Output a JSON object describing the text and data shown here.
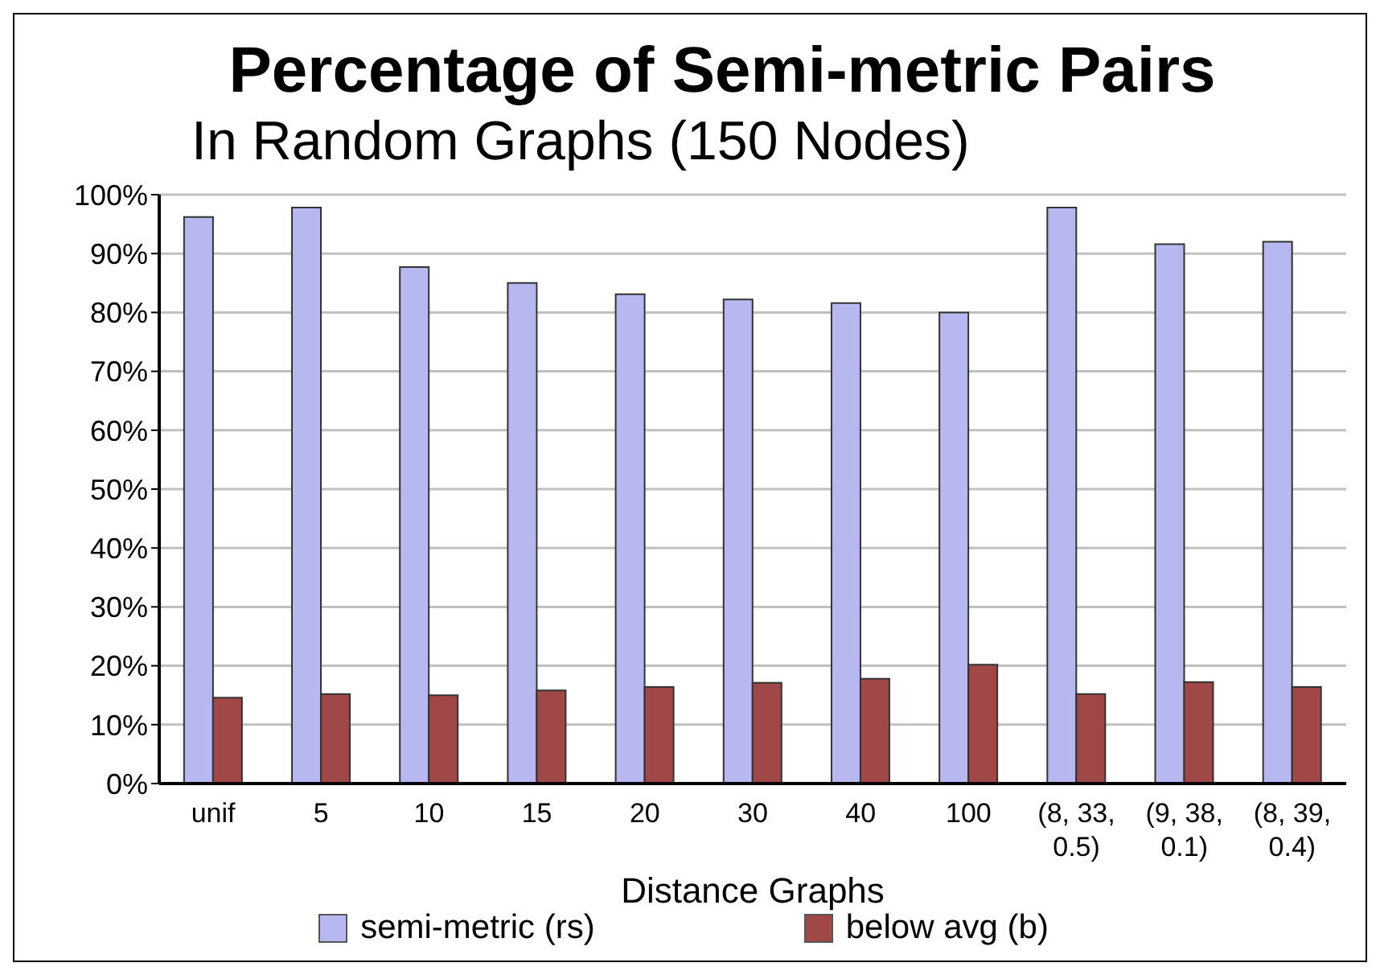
{
  "chart_data": {
    "type": "bar",
    "title": "Percentage of Semi-metric Pairs",
    "subtitle": "In Random Graphs (150 Nodes)",
    "xlabel": "Distance Graphs",
    "categories": [
      "unif",
      "5",
      "10",
      "15",
      "20",
      "30",
      "40",
      "100",
      "(8, 33, 0.5)",
      "(9, 38, 0.1)",
      "(8, 39, 0.4)"
    ],
    "series": [
      {
        "name": "semi-metric (rs)",
        "color": "#b8b8f0",
        "values": [
          96.2,
          97.8,
          87.7,
          85.0,
          83.1,
          82.2,
          81.6,
          80.0,
          97.8,
          91.6,
          92.0
        ]
      },
      {
        "name": "below avg (b)",
        "color": "#a04848",
        "values": [
          14.6,
          15.2,
          15.0,
          15.8,
          16.4,
          17.1,
          17.8,
          20.2,
          15.2,
          17.2,
          16.4
        ]
      }
    ],
    "ylim": [
      0,
      100
    ],
    "yticks": [
      {
        "value": 0,
        "label": "0%"
      },
      {
        "value": 10,
        "label": "10%"
      },
      {
        "value": 20,
        "label": "20%"
      },
      {
        "value": 30,
        "label": "30%"
      },
      {
        "value": 40,
        "label": "40%"
      },
      {
        "value": 50,
        "label": "50%"
      },
      {
        "value": 60,
        "label": "60%"
      },
      {
        "value": 70,
        "label": "70%"
      },
      {
        "value": 80,
        "label": "80%"
      },
      {
        "value": 90,
        "label": "90%"
      },
      {
        "value": 100,
        "label": "100%"
      }
    ],
    "grid": "y",
    "legend": "bottom"
  }
}
